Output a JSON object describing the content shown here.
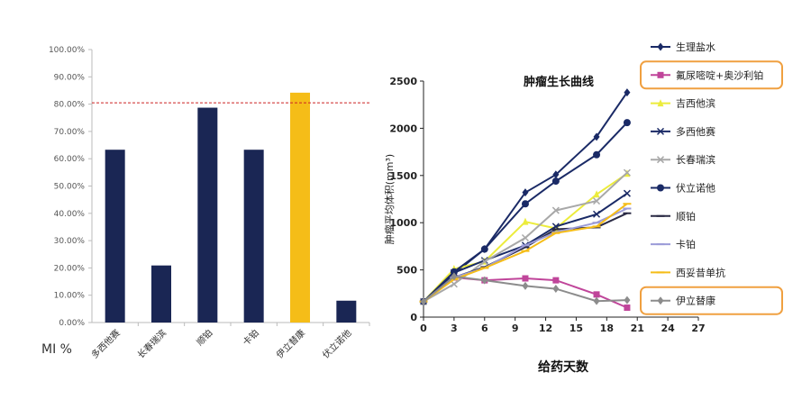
{
  "chart_data": [
    {
      "type": "bar",
      "ylabel": "MI %",
      "ylim": [
        0,
        100
      ],
      "yticks": [
        "0.00%",
        "10.00%",
        "20.00%",
        "30.00%",
        "40.00%",
        "50.00%",
        "60.00%",
        "70.00%",
        "80.00%",
        "90.00%",
        "100.00%"
      ],
      "categories": [
        "多西他赛",
        "长春瑞滨",
        "顺铂",
        "卡铂",
        "伊立替康",
        "伏立诺他"
      ],
      "values": [
        63.3,
        20.9,
        78.7,
        63.3,
        84.2,
        8.0
      ],
      "highlight_index": 4,
      "reference_line": 80.5,
      "colors": {
        "bar": "#1a2654",
        "highlight": "#f5bd18",
        "reference": "#cc2222"
      }
    },
    {
      "type": "line",
      "title": "肿瘤生长曲线",
      "xlabel": "给药天数",
      "ylabel": "肿瘤平均体积(mm³)",
      "xlim": [
        0,
        27
      ],
      "ylim": [
        0,
        2500
      ],
      "xticks": [
        0,
        3,
        6,
        9,
        12,
        15,
        18,
        21,
        24,
        27
      ],
      "yticks": [
        0,
        500,
        1000,
        1500,
        2000,
        2500
      ],
      "series": [
        {
          "name": "生理盐水",
          "color": "#1a2a66",
          "marker": "diamond",
          "x": [
            0,
            3,
            6,
            10,
            13,
            17,
            20
          ],
          "y": [
            165,
            460,
            720,
            1320,
            1510,
            1910,
            2380
          ]
        },
        {
          "name": "氟尿嘧啶+奥沙利铂",
          "color": "#c0459a",
          "marker": "square",
          "x": [
            0,
            3,
            6,
            10,
            13,
            17,
            20
          ],
          "y": [
            165,
            420,
            390,
            410,
            390,
            240,
            100
          ]
        },
        {
          "name": "吉西他滨",
          "color": "#ecec3c",
          "marker": "triangle",
          "x": [
            0,
            3,
            6,
            10,
            13,
            17,
            20
          ],
          "y": [
            165,
            510,
            590,
            1010,
            940,
            1300,
            1520
          ]
        },
        {
          "name": "多西他赛",
          "color": "#1a2a66",
          "marker": "x",
          "x": [
            0,
            3,
            6,
            10,
            13,
            17,
            20
          ],
          "y": [
            165,
            470,
            600,
            760,
            960,
            1090,
            1310
          ]
        },
        {
          "name": "长春瑞滨",
          "color": "#a8a8a8",
          "marker": "x",
          "x": [
            0,
            3,
            6,
            10,
            13,
            17,
            20
          ],
          "y": [
            165,
            350,
            590,
            840,
            1130,
            1230,
            1530
          ]
        },
        {
          "name": "伏立诺他",
          "color": "#1a2a66",
          "marker": "circle",
          "x": [
            0,
            3,
            6,
            10,
            13,
            17,
            20
          ],
          "y": [
            165,
            480,
            720,
            1200,
            1440,
            1720,
            2060
          ]
        },
        {
          "name": "顺铂",
          "color": "#2a2a44",
          "marker": "dash",
          "x": [
            0,
            3,
            6,
            10,
            13,
            17,
            20
          ],
          "y": [
            165,
            420,
            530,
            740,
            930,
            950,
            1100
          ]
        },
        {
          "name": "卡铂",
          "color": "#9c9cd8",
          "marker": "dash",
          "x": [
            0,
            3,
            6,
            10,
            13,
            17,
            20
          ],
          "y": [
            165,
            420,
            520,
            760,
            900,
            1000,
            1150
          ]
        },
        {
          "name": "西妥昔单抗",
          "color": "#f5bd18",
          "marker": "dash",
          "x": [
            0,
            3,
            6,
            10,
            13,
            17,
            20
          ],
          "y": [
            165,
            400,
            520,
            700,
            890,
            960,
            1200
          ]
        },
        {
          "name": "伊立替康",
          "color": "#8c8c8c",
          "marker": "diamond",
          "x": [
            0,
            3,
            6,
            10,
            13,
            17,
            20
          ],
          "y": [
            165,
            430,
            390,
            330,
            300,
            170,
            180
          ]
        }
      ],
      "legend_highlight": [
        "氟尿嘧啶+奥沙利铂",
        "伊立替康"
      ],
      "highlight_color": "#f0a040"
    }
  ]
}
